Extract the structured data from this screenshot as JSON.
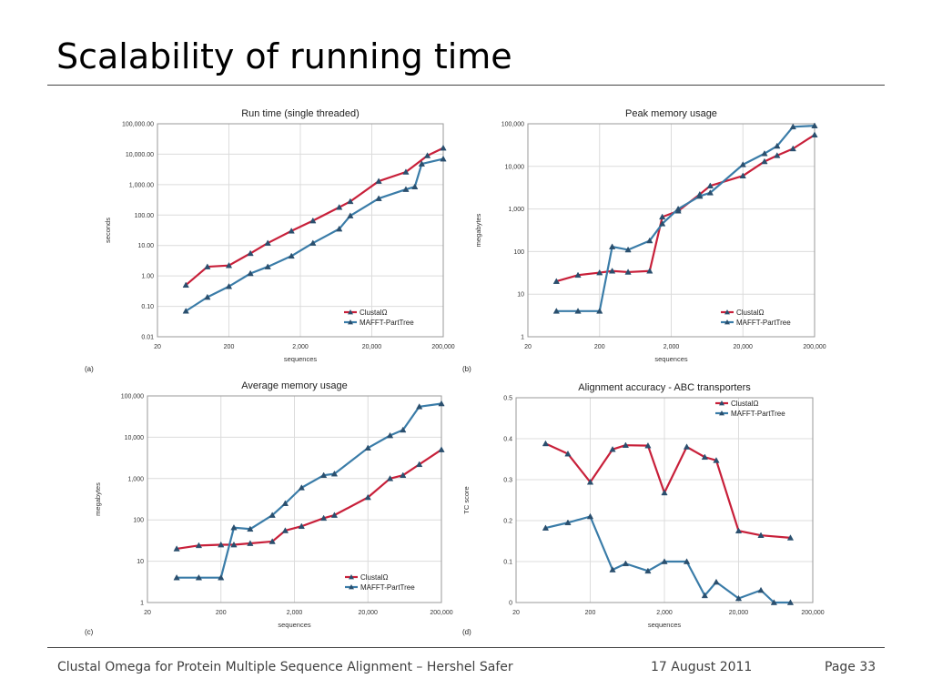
{
  "slide": {
    "title": "Scalability of running time",
    "footer_left": "Clustal Omega for Protein Multiple Sequence Alignment – Hershel Safer",
    "footer_date": "17 August 2011",
    "footer_page": "Page 33"
  },
  "colors": {
    "clustal": "#c8203a",
    "mafft": "#3a7ca8"
  },
  "chart_data": [
    {
      "panel": "(a)",
      "type": "line",
      "title": "Run time (single threaded)",
      "xlabel": "sequences",
      "ylabel": "seconds",
      "xscale": "log",
      "yscale": "log",
      "xlim": [
        20,
        200000
      ],
      "ylim": [
        0.01,
        100000
      ],
      "xticks": [
        "20",
        "200",
        "2,000",
        "20,000",
        "200,000"
      ],
      "yticks": [
        "0.01",
        "0.10",
        "1.00",
        "10.00",
        "100.00",
        "1,000.00",
        "10,000.00",
        "100,000.00"
      ],
      "grid": true,
      "legend": "bottom-right",
      "series": [
        {
          "name": "ClustalΩ",
          "x": [
            50,
            100,
            200,
            400,
            700,
            1500,
            3000,
            7000,
            10000,
            25000,
            60000,
            120000,
            200000
          ],
          "y": [
            0.5,
            2,
            2.2,
            5.5,
            12,
            30,
            65,
            180,
            280,
            1300,
            2600,
            9000,
            16000
          ]
        },
        {
          "name": "MAFFT-PartTree",
          "x": [
            50,
            100,
            200,
            400,
            700,
            1500,
            3000,
            7000,
            10000,
            25000,
            60000,
            80000,
            100000,
            200000
          ],
          "y": [
            0.07,
            0.2,
            0.45,
            1.2,
            2,
            4.5,
            12,
            35,
            95,
            350,
            700,
            850,
            4800,
            7000
          ]
        }
      ]
    },
    {
      "panel": "(b)",
      "type": "line",
      "title": "Peak memory usage",
      "xlabel": "sequences",
      "ylabel": "megabytes",
      "xscale": "log",
      "yscale": "log",
      "xlim": [
        20,
        200000
      ],
      "ylim": [
        1,
        100000
      ],
      "xticks": [
        "20",
        "200",
        "2,000",
        "20,000",
        "200,000"
      ],
      "yticks": [
        "1",
        "10",
        "100",
        "1,000",
        "10,000",
        "100,000"
      ],
      "grid": true,
      "legend": "bottom-right",
      "series": [
        {
          "name": "ClustalΩ",
          "x": [
            50,
            100,
            200,
            300,
            500,
            1000,
            1500,
            2500,
            5000,
            7000,
            20000,
            40000,
            60000,
            100000,
            200000
          ],
          "y": [
            20,
            28,
            32,
            35,
            33,
            35,
            650,
            900,
            2200,
            3500,
            6000,
            13000,
            18000,
            26000,
            55000
          ]
        },
        {
          "name": "MAFFT-PartTree",
          "x": [
            50,
            100,
            200,
            300,
            500,
            1000,
            1500,
            2500,
            5000,
            7000,
            20000,
            40000,
            60000,
            100000,
            200000
          ],
          "y": [
            4,
            4,
            4,
            130,
            110,
            180,
            450,
            1000,
            2000,
            2400,
            11000,
            20000,
            30000,
            85000,
            90000
          ]
        }
      ]
    },
    {
      "panel": "(c)",
      "type": "line",
      "title": "Average memory usage",
      "xlabel": "sequences",
      "ylabel": "megabytes",
      "xscale": "log",
      "yscale": "log",
      "xlim": [
        20,
        200000
      ],
      "ylim": [
        1,
        100000
      ],
      "xticks": [
        "20",
        "200",
        "2,000",
        "20,000",
        "200,000"
      ],
      "yticks": [
        "1",
        "10",
        "100",
        "1,000",
        "10,000",
        "100,000"
      ],
      "grid": true,
      "legend": "bottom-right",
      "series": [
        {
          "name": "ClustalΩ",
          "x": [
            50,
            100,
            200,
            300,
            500,
            1000,
            1500,
            2500,
            5000,
            7000,
            20000,
            40000,
            60000,
            100000,
            200000
          ],
          "y": [
            20,
            24,
            25,
            25,
            27,
            30,
            55,
            70,
            110,
            130,
            350,
            1000,
            1200,
            2200,
            5000
          ]
        },
        {
          "name": "MAFFT-PartTree",
          "x": [
            50,
            100,
            200,
            300,
            500,
            1000,
            1500,
            2500,
            5000,
            7000,
            20000,
            40000,
            60000,
            100000,
            200000
          ],
          "y": [
            4,
            4,
            4,
            65,
            60,
            130,
            250,
            600,
            1200,
            1300,
            5500,
            11000,
            15000,
            55000,
            65000
          ]
        }
      ]
    },
    {
      "panel": "(d)",
      "type": "line",
      "title": "Alignment accuracy - ABC transporters",
      "xlabel": "sequences",
      "ylabel": "TC score",
      "xscale": "log",
      "yscale": "linear",
      "xlim": [
        20,
        200000
      ],
      "ylim": [
        0,
        0.5
      ],
      "xticks": [
        "20",
        "200",
        "2,000",
        "20,000",
        "200,000"
      ],
      "yticks": [
        "0",
        "0.1",
        "0.2",
        "0.3",
        "0.4",
        "0.5"
      ],
      "grid": true,
      "legend": "top-right",
      "series": [
        {
          "name": "ClustalΩ",
          "x": [
            50,
            100,
            200,
            400,
            600,
            1200,
            2000,
            4000,
            7000,
            10000,
            20000,
            40000,
            100000
          ],
          "y": [
            0.388,
            0.363,
            0.294,
            0.374,
            0.384,
            0.383,
            0.268,
            0.38,
            0.355,
            0.347,
            0.175,
            0.164,
            0.158
          ]
        },
        {
          "name": "MAFFT-PartTree",
          "x": [
            50,
            100,
            200,
            400,
            600,
            1200,
            2000,
            4000,
            7000,
            10000,
            20000,
            40000,
            60000,
            100000
          ],
          "y": [
            0.182,
            0.195,
            0.21,
            0.08,
            0.095,
            0.077,
            0.1,
            0.1,
            0.017,
            0.05,
            0.01,
            0.03,
            0.0,
            0.0
          ]
        }
      ]
    }
  ]
}
